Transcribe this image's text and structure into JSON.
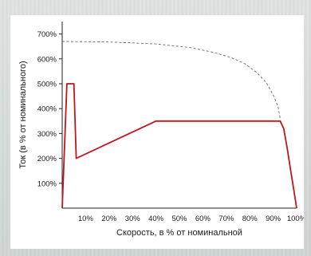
{
  "chart_data": {
    "type": "line",
    "xlabel": "Скорость, в % от номинальной",
    "ylabel": "Ток (в % от номинального)",
    "xlim": [
      0,
      100
    ],
    "ylim": [
      0,
      750
    ],
    "x_ticks": [
      {
        "value": 10,
        "label": "10%"
      },
      {
        "value": 20,
        "label": "20%"
      },
      {
        "value": 30,
        "label": "30%"
      },
      {
        "value": 40,
        "label": "40%"
      },
      {
        "value": 50,
        "label": "50%"
      },
      {
        "value": 60,
        "label": "60%"
      },
      {
        "value": 70,
        "label": "70%"
      },
      {
        "value": 80,
        "label": "80%"
      },
      {
        "value": 90,
        "label": "90%"
      },
      {
        "value": 100,
        "label": "100%"
      }
    ],
    "y_ticks": [
      {
        "value": 100,
        "label": "100%"
      },
      {
        "value": 200,
        "label": "200%"
      },
      {
        "value": 300,
        "label": "300%"
      },
      {
        "value": 400,
        "label": "400%"
      },
      {
        "value": 500,
        "label": "500%"
      },
      {
        "value": 600,
        "label": "600%"
      },
      {
        "value": 700,
        "label": "700%"
      }
    ],
    "grid": false,
    "series": [
      {
        "style": "solid",
        "color": "#c0161c",
        "x": [
          0,
          2,
          5,
          6,
          40,
          93,
          94.5,
          96,
          97.5,
          99,
          100
        ],
        "y": [
          0,
          500,
          500,
          200,
          350,
          350,
          320,
          240,
          150,
          60,
          0
        ]
      },
      {
        "style": "dashed",
        "color": "#666666",
        "x": [
          0,
          20,
          40,
          55,
          65,
          72,
          78,
          83,
          87,
          90,
          92,
          93
        ],
        "y": [
          670,
          668,
          660,
          645,
          625,
          605,
          580,
          545,
          505,
          455,
          410,
          360
        ]
      }
    ]
  }
}
